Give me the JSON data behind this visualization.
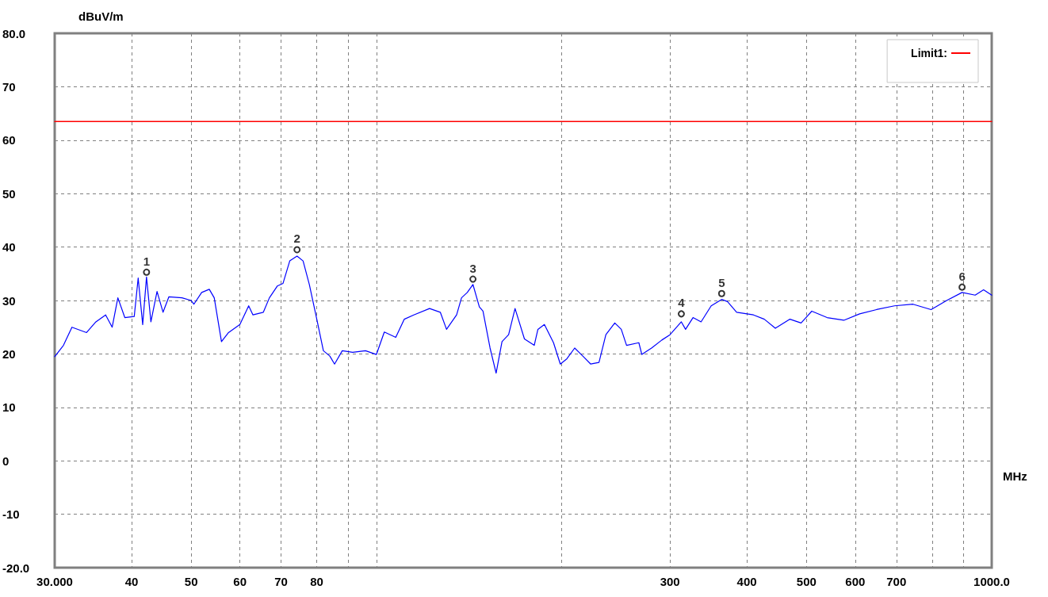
{
  "chart_data": {
    "type": "line",
    "xlabel": "MHz",
    "ylabel": "dBuV/m",
    "log": "x",
    "grid": true,
    "legend": "top right",
    "marker": "none",
    "line_style": "solid",
    "xlim": [
      30,
      1000
    ],
    "xticks": [
      {
        "value": 30,
        "label": "30.000"
      },
      40,
      50,
      60,
      70,
      80,
      {
        "value": 90,
        "label": null
      },
      {
        "value": 100,
        "label": null
      },
      {
        "value": 200,
        "label": null
      },
      300,
      400,
      500,
      600,
      700,
      {
        "value": 800,
        "label": null
      },
      {
        "value": 900,
        "label": null
      },
      {
        "value": 1000,
        "label": "1000.0"
      }
    ],
    "ylim": [
      -20,
      80
    ],
    "yticks": [
      {
        "value": -20,
        "label": "-20.0"
      },
      -10,
      0,
      10,
      20,
      30,
      40,
      50,
      60,
      70,
      {
        "value": 80,
        "label": "80.0"
      }
    ],
    "series": [
      {
        "color": "#0000ff",
        "x": [
          30,
          31,
          32,
          33.8,
          35,
          36.3,
          37.2,
          38,
          39,
          40.4,
          41,
          41.7,
          42.3,
          43,
          44,
          45,
          46,
          48.3,
          50,
          50.5,
          52,
          53.5,
          54.5,
          56,
          57.5,
          60,
          62,
          63,
          65.5,
          67,
          69,
          70.5,
          72.3,
          74.3,
          76,
          77.8,
          80,
          82,
          84,
          85.5,
          88,
          91.5,
          96,
          100,
          103,
          107.5,
          111,
          115,
          122,
          127,
          130,
          135,
          137.5,
          140.5,
          143.5,
          147,
          149,
          153,
          156.5,
          160,
          164,
          168,
          174,
          180.5,
          183,
          187.5,
          194,
          199,
          204,
          210,
          216.5,
          223,
          230,
          236,
          244,
          250,
          255,
          267,
          270,
          280,
          291,
          300,
          313,
          318,
          327,
          337,
          350,
          364,
          372,
          385,
          410,
          427,
          445,
          470,
          490,
          510,
          540,
          575,
          610,
          650,
          695,
          745,
          797,
          845,
          895,
          940,
          970,
          1000
        ],
        "values": [
          19.5,
          21.6,
          25,
          24,
          26,
          27.3,
          25,
          30.5,
          26.8,
          27,
          34.2,
          25.5,
          34.4,
          26,
          31.7,
          27.8,
          30.7,
          30.5,
          30,
          29.3,
          31.5,
          32.1,
          30.5,
          22.3,
          24,
          25.5,
          29,
          27.3,
          27.8,
          30.5,
          32.7,
          33.2,
          37.4,
          38.3,
          37.4,
          33,
          26.5,
          20.6,
          19.6,
          18.1,
          20.6,
          20.3,
          20.6,
          19.9,
          24.1,
          23.1,
          26.5,
          27.3,
          28.5,
          27.8,
          24.6,
          27.3,
          30.5,
          31.5,
          33,
          28.8,
          28,
          21.1,
          16.4,
          22.3,
          23.6,
          28.5,
          22.8,
          21.6,
          24.6,
          25.5,
          22.1,
          18.1,
          19.1,
          21.1,
          19.6,
          18.1,
          18.4,
          23.6,
          25.8,
          24.6,
          21.6,
          22.1,
          19.9,
          21.1,
          22.6,
          23.6,
          26,
          24.6,
          26.8,
          26,
          29,
          30.2,
          29.8,
          27.8,
          27.3,
          26.5,
          24.8,
          26.5,
          25.8,
          28,
          26.8,
          26.3,
          27.5,
          28.3,
          29,
          29.3,
          28.3,
          30,
          31.5,
          31,
          32,
          31
        ]
      },
      {
        "name": "Limit1:",
        "color": "#ff0000",
        "x": [
          30,
          1000
        ],
        "values": [
          63.5,
          63.5
        ]
      }
    ],
    "annotations": [
      {
        "text": "1",
        "x": 42.3,
        "y": 35.3
      },
      {
        "text": "2",
        "x": 74.3,
        "y": 39.5
      },
      {
        "text": "3",
        "x": 143.5,
        "y": 34
      },
      {
        "text": "4",
        "x": 313,
        "y": 27.5
      },
      {
        "text": "5",
        "x": 364,
        "y": 31.3
      },
      {
        "text": "6",
        "x": 895,
        "y": 32.5
      }
    ]
  }
}
